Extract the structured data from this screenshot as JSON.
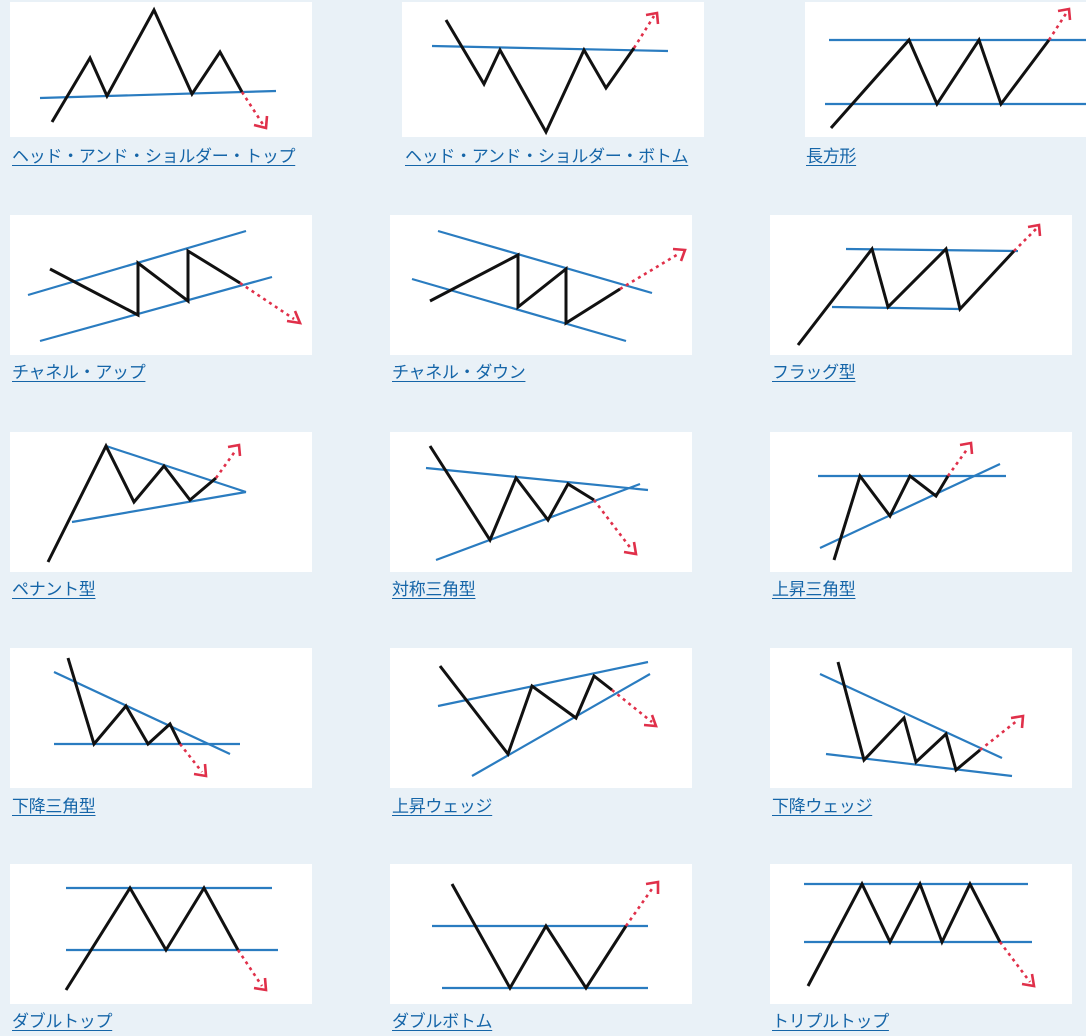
{
  "patterns": [
    {
      "label": "ヘッド・アンド・ショルダー・トップ",
      "icon": "head-and-shoulders-top-icon"
    },
    {
      "label": "ヘッド・アンド・ショルダー・ボトム",
      "icon": "head-and-shoulders-bottom-icon"
    },
    {
      "label": "長方形",
      "icon": "rectangle-pattern-icon"
    },
    {
      "label": "チャネル・アップ",
      "icon": "channel-up-icon"
    },
    {
      "label": "チャネル・ダウン",
      "icon": "channel-down-icon"
    },
    {
      "label": "フラッグ型",
      "icon": "flag-pattern-icon"
    },
    {
      "label": "ペナント型",
      "icon": "pennant-pattern-icon"
    },
    {
      "label": "対称三角型",
      "icon": "symmetrical-triangle-icon"
    },
    {
      "label": "上昇三角型",
      "icon": "ascending-triangle-icon"
    },
    {
      "label": "下降三角型",
      "icon": "descending-triangle-icon"
    },
    {
      "label": "上昇ウェッジ",
      "icon": "rising-wedge-icon"
    },
    {
      "label": "下降ウェッジ",
      "icon": "falling-wedge-icon"
    },
    {
      "label": "ダブルトップ",
      "icon": "double-top-icon"
    },
    {
      "label": "ダブルボトム",
      "icon": "double-bottom-icon"
    },
    {
      "label": "トリプルトップ",
      "icon": "triple-top-icon"
    }
  ],
  "colors": {
    "background": "#e9f1f7",
    "link": "#1565a8",
    "price_line": "#111111",
    "trend_line": "#2a7cc0",
    "breakout_arrow": "#e0304a"
  }
}
